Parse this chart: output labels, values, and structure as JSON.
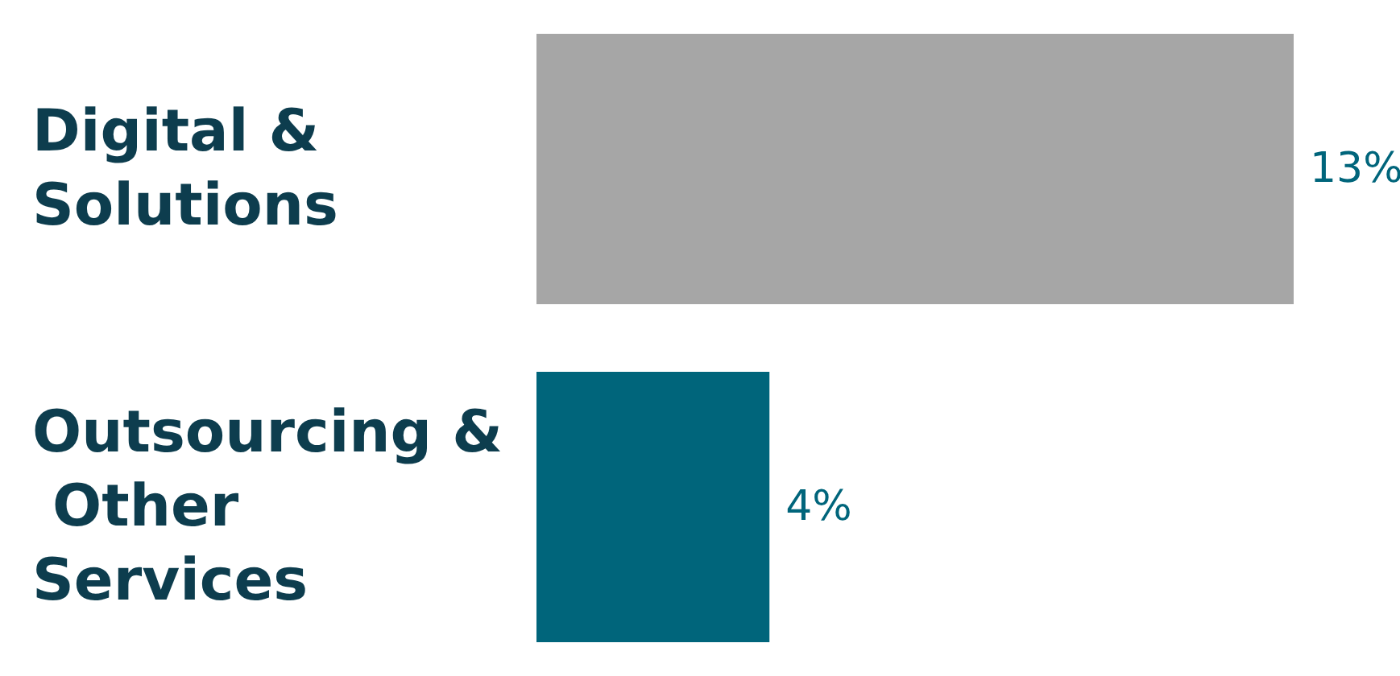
{
  "chart_data": {
    "type": "bar",
    "orientation": "horizontal",
    "categories": [
      "Digital & Solutions",
      "Outsourcing & Other Services"
    ],
    "values": [
      13,
      4
    ],
    "colors": [
      "#a6a6a6",
      "#00657b"
    ],
    "value_labels": [
      "13%",
      "4%"
    ]
  }
}
